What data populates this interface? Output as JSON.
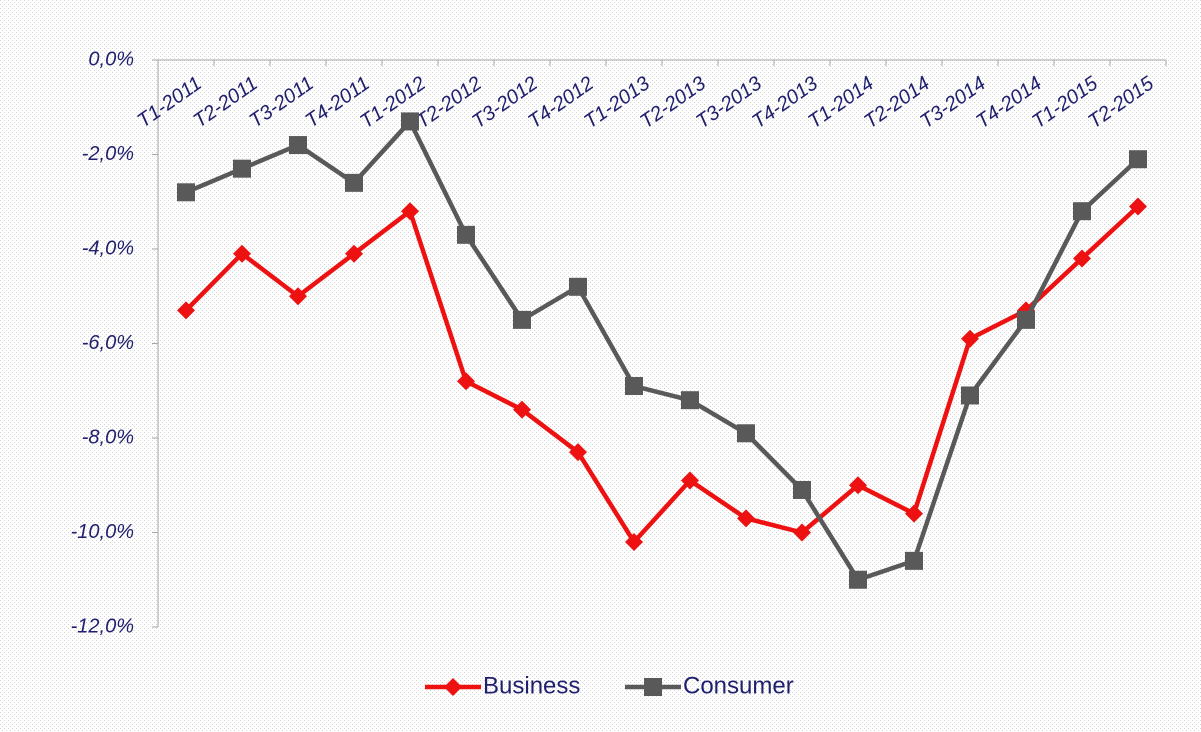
{
  "chart_data": {
    "type": "line",
    "categories": [
      "T1-2011",
      "T2-2011",
      "T3-2011",
      "T4-2011",
      "T1-2012",
      "T2-2012",
      "T3-2012",
      "T4-2012",
      "T1-2013",
      "T2-2013",
      "T3-2013",
      "T4-2013",
      "T1-2014",
      "T2-2014",
      "T3-2014",
      "T4-2014",
      "T1-2015",
      "T2-2015"
    ],
    "series": [
      {
        "name": "Business",
        "color": "#ee1111",
        "marker": "diamond",
        "values": [
          -5.3,
          -4.1,
          -5.0,
          -4.1,
          -3.2,
          -6.8,
          -7.4,
          -8.3,
          -10.2,
          -8.9,
          -9.7,
          -10.0,
          -9.0,
          -9.6,
          -5.9,
          -5.3,
          -4.2,
          -3.1
        ]
      },
      {
        "name": "Consumer",
        "color": "#595959",
        "marker": "square",
        "values": [
          -2.8,
          -2.3,
          -1.8,
          -2.6,
          -1.3,
          -3.7,
          -5.5,
          -4.8,
          -6.9,
          -7.2,
          -7.9,
          -9.1,
          -11.0,
          -10.6,
          -7.1,
          -5.5,
          -3.2,
          -2.1
        ]
      }
    ],
    "ylim": [
      -12,
      0
    ],
    "yticks": [
      {
        "value": 0,
        "label": "0,0%"
      },
      {
        "value": -2,
        "label": "-2,0%"
      },
      {
        "value": -4,
        "label": "-4,0%"
      },
      {
        "value": -6,
        "label": "-6,0%"
      },
      {
        "value": -8,
        "label": "-8,0%"
      },
      {
        "value": -10,
        "label": "-10,0%"
      },
      {
        "value": -12,
        "label": "-12,0%"
      }
    ],
    "grid": false,
    "legend": "bottom"
  }
}
